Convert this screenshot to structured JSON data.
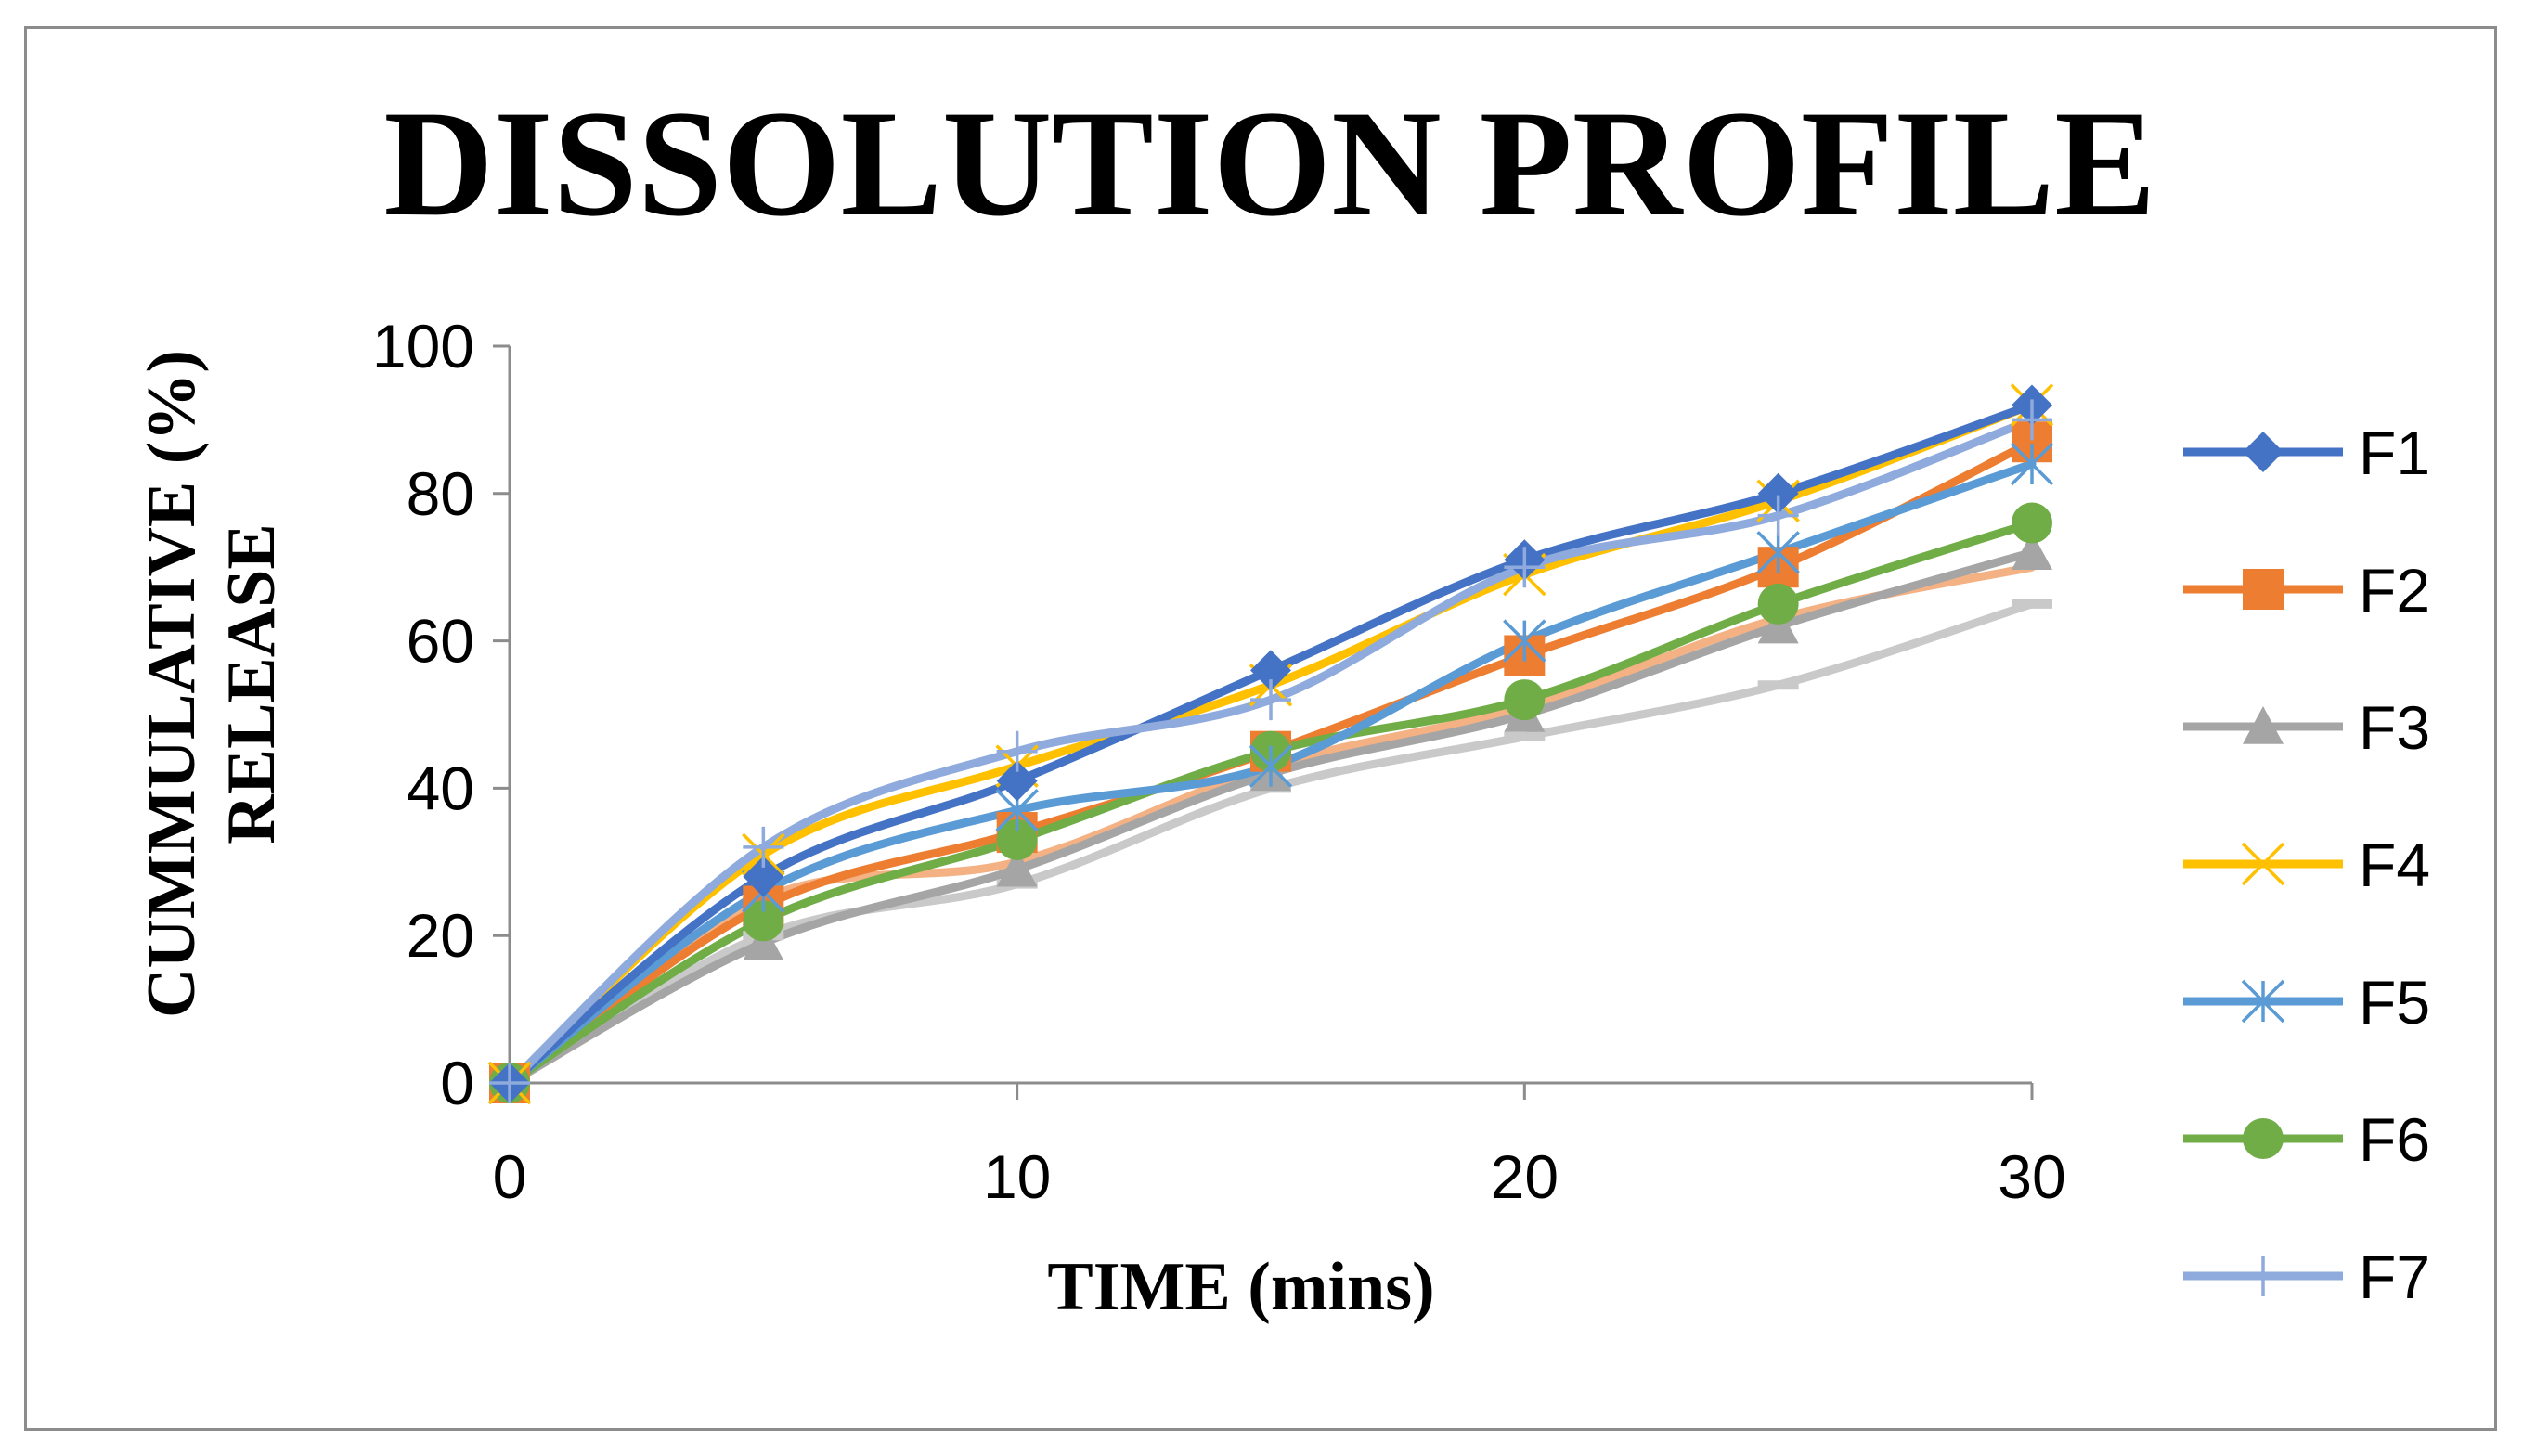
{
  "chart_data": {
    "type": "line",
    "title": "DISSOLUTION PROFILE",
    "xlabel": "TIME (mins)",
    "ylabel_lines": [
      "CUMMULATIVE (%)",
      "RELEASE"
    ],
    "x": [
      0,
      5,
      10,
      15,
      20,
      25,
      30
    ],
    "xlim": [
      0,
      30
    ],
    "ylim": [
      0,
      100
    ],
    "xticks": [
      0,
      10,
      20,
      30
    ],
    "yticks": [
      0,
      20,
      40,
      60,
      80,
      100
    ],
    "xtick_labels": [
      "0",
      "10",
      "20",
      "30"
    ],
    "ytick_labels": [
      "0",
      "20",
      "40",
      "60",
      "80",
      "100"
    ],
    "legend_position": "right",
    "series": [
      {
        "name": "F1",
        "values": [
          0,
          28,
          41,
          56,
          71,
          80,
          92
        ],
        "color": "#4472c4",
        "marker": "diamond"
      },
      {
        "name": "F2",
        "values": [
          0,
          24,
          34,
          45,
          58,
          70,
          87
        ],
        "color": "#ed7d31",
        "marker": "square"
      },
      {
        "name": "F3",
        "values": [
          0,
          19,
          29,
          42,
          50,
          62,
          72
        ],
        "color": "#a5a5a5",
        "marker": "triangle"
      },
      {
        "name": "F4",
        "values": [
          0,
          31,
          43,
          54,
          69,
          79,
          92
        ],
        "color": "#ffc000",
        "marker": "x"
      },
      {
        "name": "F5",
        "values": [
          0,
          26,
          37,
          43,
          60,
          72,
          84
        ],
        "color": "#5b9bd5",
        "marker": "asterisk"
      },
      {
        "name": "F6",
        "values": [
          0,
          22,
          33,
          45,
          52,
          65,
          76
        ],
        "color": "#70ad47",
        "marker": "circle"
      },
      {
        "name": "F7",
        "values": [
          0,
          32,
          45,
          52,
          70,
          77,
          90
        ],
        "color": "#8faadc",
        "marker": "plus"
      },
      {
        "name": "",
        "values": [
          0,
          25,
          30,
          43,
          51,
          63,
          70
        ],
        "color": "#f4b183",
        "marker": "none"
      },
      {
        "name": "",
        "values": [
          0,
          20,
          27,
          40,
          47,
          54,
          65
        ],
        "color": "#c9c9c9",
        "marker": "dash"
      }
    ]
  }
}
